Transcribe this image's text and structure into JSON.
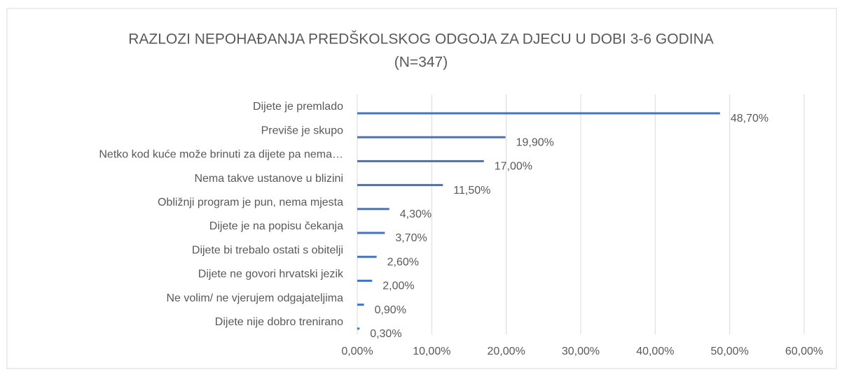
{
  "chart_data": {
    "type": "bar",
    "orientation": "horizontal",
    "title": [
      "RAZLOZI NEPOHAĐANJA PREDŠKOLSKOG ODGOJA ZA DJECU U DOBI 3-6 GODINA",
      "(N=347)"
    ],
    "categories": [
      "Dijete je premlado",
      "Previše je skupo",
      "Netko kod kuće može brinuti za dijete pa nema…",
      "Nema takve ustanove u blizini",
      "Obližnji program je pun, nema mjesta",
      "Dijete je na popisu čekanja",
      "Dijete bi trebalo ostati s obitelji",
      "Dijete ne govori hrvatski jezik",
      "Ne volim/ ne vjerujem odgajateljima",
      "Dijete nije dobro trenirano"
    ],
    "values": [
      48.7,
      19.9,
      17.0,
      11.5,
      4.3,
      3.7,
      2.6,
      2.0,
      0.9,
      0.3
    ],
    "value_labels": [
      "48,70%",
      "19,90%",
      "17,00%",
      "11,50%",
      "4,30%",
      "3,70%",
      "2,60%",
      "2,00%",
      "0,90%",
      "0,30%"
    ],
    "color": "#4472c4",
    "xlim": [
      0,
      60
    ],
    "xticks": [
      {
        "value": 0,
        "label": "0,00%"
      },
      {
        "value": 10,
        "label": "10,00%"
      },
      {
        "value": 20,
        "label": "20,00%"
      },
      {
        "value": 30,
        "label": "30,00%"
      },
      {
        "value": 40,
        "label": "40,00%"
      },
      {
        "value": 50,
        "label": "50,00%"
      },
      {
        "value": 60,
        "label": "60,00%"
      }
    ],
    "grid": true
  }
}
